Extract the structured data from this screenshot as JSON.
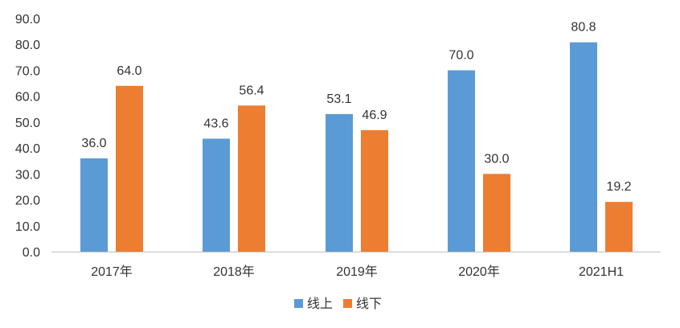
{
  "chart_data": {
    "type": "bar",
    "title": "",
    "xlabel": "",
    "ylabel": "",
    "categories": [
      "2017年",
      "2018年",
      "2019年",
      "2020年",
      "2021H1"
    ],
    "series": [
      {
        "name": "线上",
        "values": [
          36.0,
          43.6,
          53.1,
          70.0,
          80.8
        ],
        "color": "#5B9BD5"
      },
      {
        "name": "线下",
        "values": [
          64.0,
          56.4,
          46.9,
          30.0,
          19.2
        ],
        "color": "#ED7D31"
      }
    ],
    "ylim": [
      0,
      90
    ],
    "yticks": [
      "0.0",
      "10.0",
      "20.0",
      "30.0",
      "40.0",
      "50.0",
      "60.0",
      "70.0",
      "80.0",
      "90.0"
    ],
    "data_labels": true,
    "grid": false,
    "legend_position": "bottom",
    "axis_color": "#BFBFBF",
    "text_color": "#333333"
  }
}
